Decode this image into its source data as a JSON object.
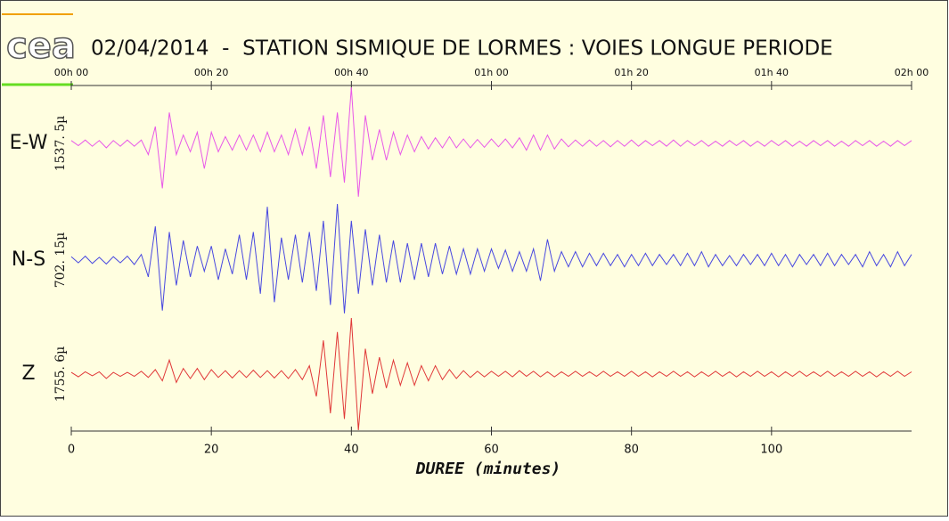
{
  "logo": "cea",
  "chart_data": {
    "type": "line",
    "title": "02/04/2014  -  STATION SISMIQUE DE LORMES : VOIES LONGUE PERIODE",
    "x_label": "DUREE (minutes)",
    "xlim": [
      0,
      120
    ],
    "xticks": [
      0,
      20,
      40,
      60,
      80,
      100
    ],
    "x2ticks": [
      {
        "value": 0,
        "label": "00h 00"
      },
      {
        "value": 20,
        "label": "00h 20"
      },
      {
        "value": 40,
        "label": "00h 40"
      },
      {
        "value": 60,
        "label": "01h 00"
      },
      {
        "value": 80,
        "label": "01h 20"
      },
      {
        "value": 100,
        "label": "01h 40"
      },
      {
        "value": 120,
        "label": "02h 00"
      }
    ],
    "ylim": [
      -1,
      1
    ],
    "x": [
      0,
      1,
      2,
      3,
      4,
      5,
      6,
      7,
      8,
      9,
      10,
      11,
      12,
      13,
      14,
      15,
      16,
      17,
      18,
      19,
      20,
      21,
      22,
      23,
      24,
      25,
      26,
      27,
      28,
      29,
      30,
      31,
      32,
      33,
      34,
      35,
      36,
      37,
      38,
      39,
      40,
      41,
      42,
      43,
      44,
      45,
      46,
      47,
      48,
      49,
      50,
      51,
      52,
      53,
      54,
      55,
      56,
      57,
      58,
      59,
      60,
      61,
      62,
      63,
      64,
      65,
      66,
      67,
      68,
      69,
      70,
      71,
      72,
      73,
      74,
      75,
      76,
      77,
      78,
      79,
      80,
      81,
      82,
      83,
      84,
      85,
      86,
      87,
      88,
      89,
      90,
      91,
      92,
      93,
      94,
      95,
      96,
      97,
      98,
      99,
      100,
      101,
      102,
      103,
      104,
      105,
      106,
      107,
      108,
      109,
      110,
      111,
      112,
      113,
      114,
      115,
      116,
      117,
      118,
      119,
      120
    ],
    "series": [
      {
        "name": "E-W",
        "scale_label": "1537. 5µ",
        "color": "#e858e8",
        "values": [
          0.05,
          -0.04,
          0.06,
          -0.05,
          0.05,
          -0.08,
          0.05,
          -0.05,
          0.06,
          -0.05,
          0.06,
          -0.2,
          0.3,
          -0.8,
          0.55,
          -0.2,
          0.15,
          -0.15,
          0.2,
          -0.45,
          0.2,
          -0.15,
          0.12,
          -0.12,
          0.15,
          -0.12,
          0.15,
          -0.15,
          0.2,
          -0.15,
          0.15,
          -0.2,
          0.25,
          -0.2,
          0.3,
          -0.45,
          0.5,
          -0.6,
          0.55,
          -0.7,
          1.0,
          -0.95,
          0.5,
          -0.3,
          0.25,
          -0.3,
          0.2,
          -0.2,
          0.15,
          -0.15,
          0.12,
          -0.1,
          0.1,
          -0.08,
          0.12,
          -0.08,
          0.08,
          -0.08,
          0.07,
          -0.07,
          0.08,
          -0.06,
          0.08,
          -0.08,
          0.1,
          -0.12,
          0.15,
          -0.12,
          0.15,
          -0.1,
          0.08,
          -0.06,
          0.06,
          -0.05,
          0.06,
          -0.05,
          0.05,
          -0.06,
          0.05,
          -0.05,
          0.06,
          -0.05,
          0.05,
          -0.04,
          0.05,
          -0.05,
          0.06,
          -0.05,
          0.05,
          -0.04,
          0.05,
          -0.05,
          0.04,
          -0.05,
          0.05,
          -0.04,
          0.05,
          -0.05,
          0.04,
          -0.05,
          0.05,
          -0.04,
          0.05,
          -0.05,
          0.04,
          -0.05,
          0.05,
          -0.04,
          0.05,
          -0.05,
          0.04,
          -0.05,
          0.05,
          -0.04,
          0.05,
          -0.05,
          0.04,
          -0.05,
          0.05,
          -0.04,
          0.05
        ]
      },
      {
        "name": "N-S",
        "scale_label": "702. 15µ",
        "color": "#4848e0",
        "values": [
          0.06,
          -0.05,
          0.07,
          -0.06,
          0.05,
          -0.07,
          0.06,
          -0.05,
          0.07,
          -0.08,
          0.1,
          -0.3,
          0.6,
          -0.9,
          0.5,
          -0.45,
          0.35,
          -0.3,
          0.25,
          -0.2,
          0.25,
          -0.35,
          0.2,
          -0.25,
          0.45,
          -0.35,
          0.5,
          -0.6,
          0.95,
          -0.75,
          0.4,
          -0.35,
          0.45,
          -0.4,
          0.5,
          -0.55,
          0.7,
          -0.8,
          1.0,
          -0.95,
          0.7,
          -0.6,
          0.55,
          -0.45,
          0.45,
          -0.4,
          0.35,
          -0.4,
          0.3,
          -0.35,
          0.3,
          -0.3,
          0.3,
          -0.25,
          0.25,
          -0.25,
          0.2,
          -0.25,
          0.2,
          -0.2,
          0.2,
          -0.15,
          0.18,
          -0.2,
          0.15,
          -0.2,
          0.2,
          -0.37,
          0.37,
          -0.2,
          0.15,
          -0.12,
          0.15,
          -0.12,
          0.12,
          -0.1,
          0.12,
          -0.1,
          0.1,
          -0.12,
          0.1,
          -0.1,
          0.12,
          -0.1,
          0.1,
          -0.08,
          0.1,
          -0.1,
          0.12,
          -0.1,
          0.15,
          -0.12,
          0.1,
          -0.1,
          0.08,
          -0.1,
          0.1,
          -0.08,
          0.1,
          -0.1,
          0.12,
          -0.1,
          0.1,
          -0.12,
          0.1,
          -0.08,
          0.1,
          -0.1,
          0.12,
          -0.1,
          0.1,
          -0.08,
          0.1,
          -0.12,
          0.15,
          -0.1,
          0.1,
          -0.12,
          0.15,
          -0.1,
          0.1
        ]
      },
      {
        "name": "Z",
        "scale_label": "1755. 6µ",
        "color": "#e03838",
        "values": [
          0.03,
          -0.05,
          0.04,
          -0.03,
          0.04,
          -0.08,
          0.03,
          -0.04,
          0.03,
          -0.04,
          0.05,
          -0.06,
          0.08,
          -0.12,
          0.25,
          -0.15,
          0.1,
          -0.08,
          0.1,
          -0.1,
          0.08,
          -0.06,
          0.06,
          -0.07,
          0.06,
          -0.06,
          0.07,
          -0.06,
          0.06,
          -0.07,
          0.06,
          -0.08,
          0.08,
          -0.1,
          0.15,
          -0.4,
          0.6,
          -0.7,
          0.75,
          -0.8,
          1.0,
          -1.0,
          0.45,
          -0.35,
          0.3,
          -0.25,
          0.25,
          -0.2,
          0.2,
          -0.2,
          0.15,
          -0.12,
          0.15,
          -0.1,
          0.08,
          -0.08,
          0.06,
          -0.06,
          0.05,
          -0.05,
          0.05,
          -0.04,
          0.05,
          -0.05,
          0.06,
          -0.04,
          0.05,
          -0.05,
          0.04,
          -0.05,
          0.04,
          -0.04,
          0.05,
          -0.04,
          0.04,
          -0.04,
          0.05,
          -0.04,
          0.04,
          -0.04,
          0.05,
          -0.04,
          0.04,
          -0.05,
          0.04,
          -0.04,
          0.05,
          -0.04,
          0.04,
          -0.05,
          0.04,
          -0.04,
          0.05,
          -0.04,
          0.04,
          -0.05,
          0.04,
          -0.04,
          0.05,
          -0.04,
          0.04,
          -0.05,
          0.04,
          -0.04,
          0.05,
          -0.04,
          0.04,
          -0.04,
          0.05,
          -0.04,
          0.04,
          -0.04,
          0.05,
          -0.04,
          0.04,
          -0.05,
          0.04,
          -0.04,
          0.05,
          -0.04,
          0.04
        ]
      }
    ]
  }
}
